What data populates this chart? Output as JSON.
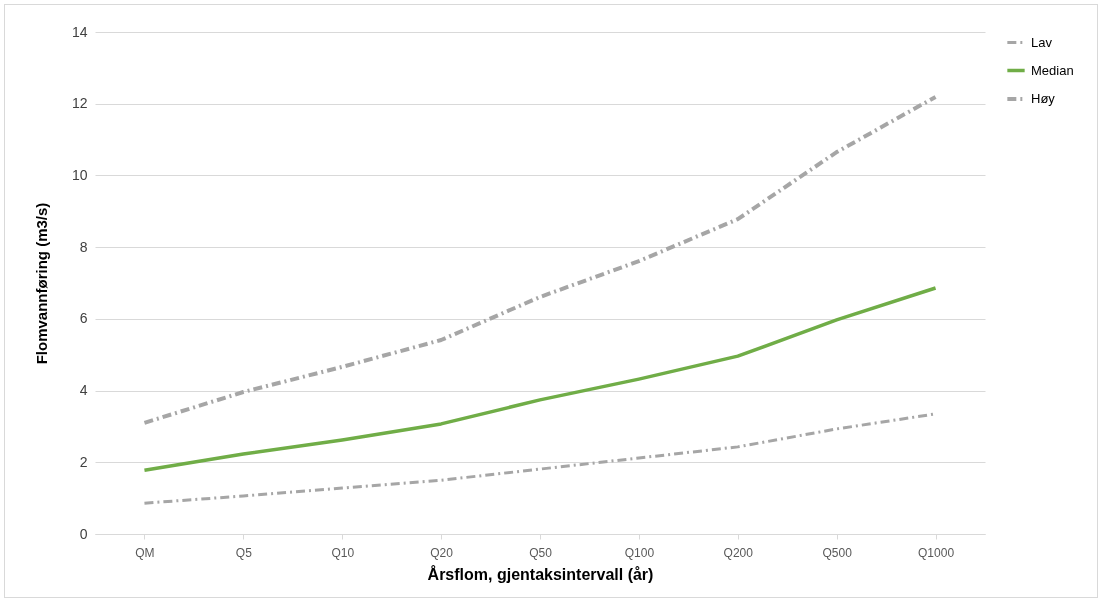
{
  "chart_data": {
    "type": "line",
    "xlabel": "Årsflom, gjentaksintervall (år)",
    "ylabel": "Flomvannføring (m3/s)",
    "categories": [
      "QM",
      "Q5",
      "Q10",
      "Q20",
      "Q50",
      "Q100",
      "Q200",
      "Q500",
      "Q1000"
    ],
    "series": [
      {
        "name": "Lav",
        "color": "#a6a6a6",
        "line_style": "dashdot",
        "values": [
          0.86,
          1.06,
          1.28,
          1.5,
          1.81,
          2.12,
          2.43,
          2.93,
          3.35
        ]
      },
      {
        "name": "Median",
        "color": "#70ad47",
        "line_style": "solid",
        "values": [
          1.78,
          2.23,
          2.62,
          3.07,
          3.74,
          4.32,
          4.96,
          5.97,
          6.86
        ]
      },
      {
        "name": "Høy",
        "color": "#a6a6a6",
        "line_style": "dashdot",
        "values": [
          3.1,
          3.96,
          4.66,
          5.41,
          6.61,
          7.61,
          8.78,
          10.65,
          12.19
        ]
      }
    ],
    "ylim": [
      0,
      14
    ],
    "yticks": [
      0,
      2,
      4,
      6,
      8,
      10,
      12,
      14
    ],
    "grid": "y",
    "legend": "right"
  }
}
